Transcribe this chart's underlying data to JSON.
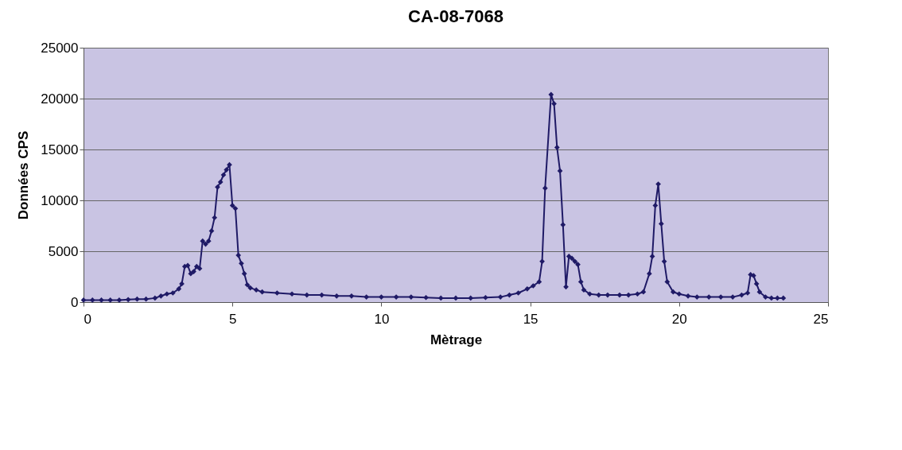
{
  "chart_data": {
    "type": "line",
    "title": "CA-08-7068",
    "xlabel": "Mètrage",
    "ylabel": "Données CPS",
    "xlim": [
      0,
      25
    ],
    "xticks": [
      0,
      5,
      10,
      15,
      20,
      25
    ],
    "ylim": [
      0,
      25000
    ],
    "yticks": [
      0,
      5000,
      10000,
      15000,
      20000,
      25000
    ],
    "grid": "y",
    "marker": "diamond",
    "line_style": "solid",
    "series": [
      {
        "color": "#1f1a66",
        "x": [
          0,
          0.3,
          0.6,
          0.9,
          1.2,
          1.5,
          1.8,
          2.1,
          2.4,
          2.6,
          2.8,
          3.0,
          3.2,
          3.3,
          3.4,
          3.5,
          3.6,
          3.7,
          3.8,
          3.9,
          4.0,
          4.1,
          4.2,
          4.3,
          4.4,
          4.5,
          4.6,
          4.7,
          4.8,
          4.9,
          5.0,
          5.1,
          5.2,
          5.3,
          5.4,
          5.5,
          5.6,
          5.8,
          6.0,
          6.5,
          7.0,
          7.5,
          8.0,
          8.5,
          9.0,
          9.5,
          10.0,
          10.5,
          11.0,
          11.5,
          12.0,
          12.5,
          13.0,
          13.5,
          14.0,
          14.3,
          14.6,
          14.9,
          15.1,
          15.3,
          15.4,
          15.5,
          15.7,
          15.8,
          15.9,
          16.0,
          16.1,
          16.2,
          16.3,
          16.4,
          16.5,
          16.6,
          16.7,
          16.8,
          17.0,
          17.3,
          17.6,
          18.0,
          18.3,
          18.6,
          18.8,
          19.0,
          19.1,
          19.2,
          19.3,
          19.4,
          19.5,
          19.6,
          19.8,
          20.0,
          20.3,
          20.6,
          21.0,
          21.4,
          21.8,
          22.1,
          22.3,
          22.4,
          22.5,
          22.6,
          22.7,
          22.9,
          23.1,
          23.3,
          23.5
        ],
        "values": [
          200,
          200,
          200,
          200,
          200,
          250,
          300,
          300,
          400,
          600,
          800,
          900,
          1300,
          1800,
          3500,
          3600,
          2800,
          3000,
          3500,
          3300,
          6000,
          5700,
          6000,
          7000,
          8300,
          11300,
          11800,
          12500,
          13000,
          13500,
          9500,
          9200,
          4600,
          3800,
          2800,
          1700,
          1400,
          1200,
          1000,
          900,
          800,
          700,
          700,
          600,
          600,
          500,
          500,
          500,
          500,
          450,
          400,
          400,
          400,
          450,
          500,
          700,
          900,
          1300,
          1600,
          2000,
          4000,
          11200,
          20400,
          19500,
          15200,
          12900,
          7600,
          1500,
          4500,
          4300,
          4000,
          3700,
          2000,
          1200,
          800,
          700,
          700,
          700,
          700,
          800,
          1000,
          2800,
          4500,
          9500,
          11600,
          7700,
          4000,
          2000,
          1000,
          800,
          600,
          500,
          500,
          500,
          500,
          700,
          900,
          2700,
          2600,
          1800,
          1000,
          500,
          400,
          400,
          400
        ]
      }
    ]
  }
}
